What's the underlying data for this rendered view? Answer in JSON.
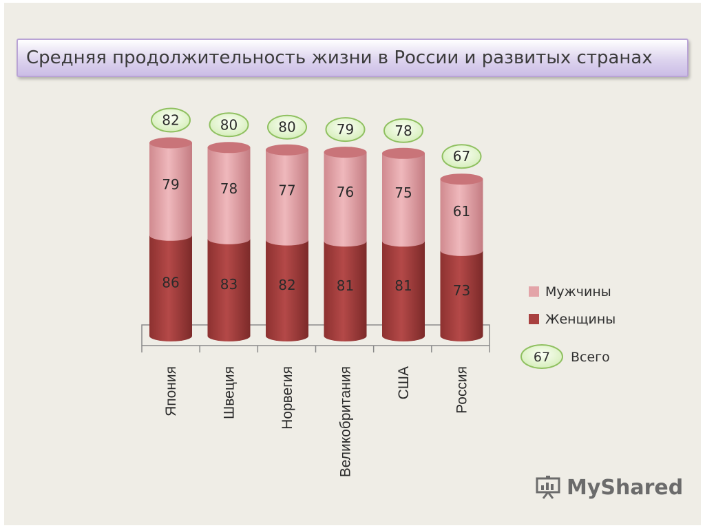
{
  "chart_data": {
    "type": "bar",
    "stacked": true,
    "title": "Средняя продолжительность жизни в России и развитых странах",
    "categories": [
      "Япония",
      "Швеция",
      "Норвегия",
      "Великобритания",
      "США",
      "Россия"
    ],
    "series": [
      {
        "name": "Женщины",
        "values": [
          86,
          83,
          82,
          81,
          81,
          73
        ]
      },
      {
        "name": "Мужчины",
        "values": [
          79,
          78,
          77,
          76,
          75,
          61
        ]
      }
    ],
    "totals": {
      "name": "Всего",
      "values": [
        82,
        80,
        80,
        79,
        78,
        67
      ]
    },
    "legend": {
      "position": "right",
      "total_example": "67"
    },
    "grid": false,
    "colors": {
      "women": "#a8403f",
      "men": "#e3a4a8",
      "total_bubble": "#e8f5d8",
      "total_border": "#8fc060"
    }
  },
  "watermark": {
    "text": "MyShared"
  }
}
